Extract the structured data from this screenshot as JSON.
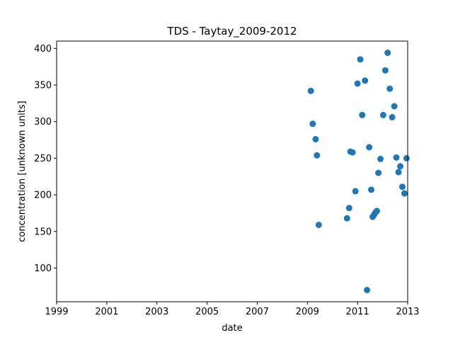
{
  "chart_data": {
    "type": "scatter",
    "title": "TDS - Taytay_2009-2012",
    "xlabel": "date",
    "ylabel": "concentration [unknown units]",
    "x_ticks": [
      "1999",
      "2001",
      "2003",
      "2005",
      "2007",
      "2009",
      "2011",
      "2013"
    ],
    "y_ticks": [
      100,
      150,
      200,
      250,
      300,
      350,
      400
    ],
    "xlim": [
      "1999-01-01",
      "2013-01-01"
    ],
    "ylim": [
      54,
      410
    ],
    "grid": false,
    "color": "#1f77b4",
    "series": [
      {
        "points": [
          {
            "x": "2009-02-20",
            "y": 342
          },
          {
            "x": "2009-03-20",
            "y": 297
          },
          {
            "x": "2009-05-01",
            "y": 276
          },
          {
            "x": "2009-05-20",
            "y": 254
          },
          {
            "x": "2009-06-15",
            "y": 159
          },
          {
            "x": "2010-08-01",
            "y": 168
          },
          {
            "x": "2010-09-01",
            "y": 182
          },
          {
            "x": "2010-09-20",
            "y": 259
          },
          {
            "x": "2010-10-20",
            "y": 258
          },
          {
            "x": "2010-12-01",
            "y": 205
          },
          {
            "x": "2011-01-01",
            "y": 352
          },
          {
            "x": "2011-02-10",
            "y": 385
          },
          {
            "x": "2011-03-10",
            "y": 309
          },
          {
            "x": "2011-04-20",
            "y": 356
          },
          {
            "x": "2011-05-20",
            "y": 70
          },
          {
            "x": "2011-06-20",
            "y": 265
          },
          {
            "x": "2011-07-20",
            "y": 207
          },
          {
            "x": "2011-08-10",
            "y": 170
          },
          {
            "x": "2011-09-01",
            "y": 173
          },
          {
            "x": "2011-09-20",
            "y": 176
          },
          {
            "x": "2011-10-10",
            "y": 178
          },
          {
            "x": "2011-11-01",
            "y": 230
          },
          {
            "x": "2011-12-01",
            "y": 249
          },
          {
            "x": "2012-01-10",
            "y": 309
          },
          {
            "x": "2012-02-10",
            "y": 370
          },
          {
            "x": "2012-03-15",
            "y": 394
          },
          {
            "x": "2012-04-15",
            "y": 345
          },
          {
            "x": "2012-05-20",
            "y": 306
          },
          {
            "x": "2012-06-20",
            "y": 321
          },
          {
            "x": "2012-07-20",
            "y": 251
          },
          {
            "x": "2012-08-20",
            "y": 231
          },
          {
            "x": "2012-09-15",
            "y": 239
          },
          {
            "x": "2012-10-15",
            "y": 211
          },
          {
            "x": "2012-11-15",
            "y": 202
          },
          {
            "x": "2012-12-15",
            "y": 250
          }
        ]
      }
    ]
  }
}
